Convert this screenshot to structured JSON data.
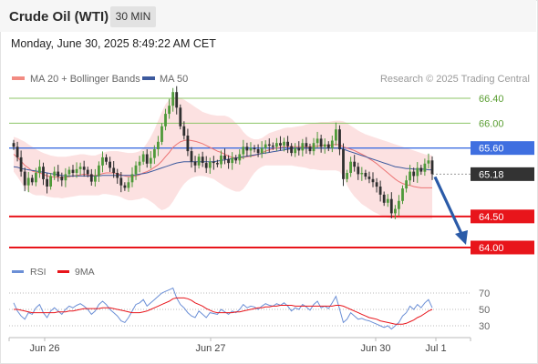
{
  "header": {
    "title": "Crude Oil (WTI)",
    "interval": "30 MIN",
    "datetime": "Monday, June 30, 2025 8:49:22 AM CET"
  },
  "copyright": "Research © 2025 Trading Central",
  "chart_data": {
    "type": "candlestick",
    "legend": [
      {
        "name": "MA 20 + Bollinger Bands",
        "color": "#f28b82"
      },
      {
        "name": "MA 50",
        "color": "#3d5a9e"
      }
    ],
    "ylim": [
      63.9,
      66.5
    ],
    "levels": [
      {
        "value": 66.4,
        "label": "66.40",
        "kind": "resistance",
        "color": "#8cc466"
      },
      {
        "value": 66.0,
        "label": "66.00",
        "kind": "resistance",
        "color": "#8cc466"
      },
      {
        "value": 65.6,
        "label": "65.60",
        "kind": "pivot",
        "color": "#3f6fe0"
      },
      {
        "value": 65.18,
        "label": "65.18",
        "kind": "last",
        "color": "#333333"
      },
      {
        "value": 64.5,
        "label": "64.50",
        "kind": "support",
        "color": "#e8151b"
      },
      {
        "value": 64.0,
        "label": "64.00",
        "kind": "support",
        "color": "#e8151b"
      }
    ],
    "x_ticks": [
      "Jun 26",
      "Jun 27",
      "Jun 30",
      "Jul 1"
    ],
    "close": [
      65.62,
      65.45,
      65.22,
      65.0,
      65.12,
      65.05,
      65.2,
      65.3,
      65.1,
      64.98,
      65.15,
      65.22,
      65.14,
      65.08,
      65.18,
      65.25,
      65.2,
      65.26,
      65.3,
      65.25,
      65.18,
      65.06,
      65.15,
      65.32,
      65.45,
      65.38,
      65.28,
      65.2,
      65.12,
      65.0,
      64.96,
      65.05,
      65.18,
      65.32,
      65.38,
      65.5,
      65.35,
      65.44,
      65.58,
      65.7,
      65.95,
      66.15,
      66.28,
      66.5,
      66.25,
      65.95,
      65.8,
      65.55,
      65.38,
      65.32,
      65.46,
      65.36,
      65.28,
      65.38,
      65.36,
      65.34,
      65.48,
      65.42,
      65.36,
      65.44,
      65.4,
      65.5,
      65.62,
      65.56,
      65.6,
      65.58,
      65.52,
      65.6,
      65.66,
      65.64,
      65.62,
      65.68,
      65.64,
      65.7,
      65.63,
      65.52,
      65.6,
      65.56,
      65.68,
      65.62,
      65.55,
      65.68,
      65.75,
      65.62,
      65.66,
      65.6,
      65.72,
      65.9,
      65.58,
      65.1,
      65.2,
      65.38,
      65.3,
      65.18,
      65.2,
      65.14,
      65.1,
      65.05,
      64.98,
      64.85,
      64.72,
      64.78,
      64.55,
      64.62,
      64.75,
      64.95,
      65.08,
      65.22,
      65.15,
      65.28,
      65.22,
      65.35,
      65.4,
      65.18
    ],
    "ma20": [
      65.5,
      65.45,
      65.39,
      65.32,
      65.28,
      65.23,
      65.21,
      65.2,
      65.18,
      65.15,
      65.14,
      65.13,
      65.13,
      65.12,
      65.13,
      65.14,
      65.15,
      65.16,
      65.17,
      65.18,
      65.17,
      65.16,
      65.16,
      65.17,
      65.19,
      65.2,
      65.2,
      65.2,
      65.19,
      65.17,
      65.15,
      65.14,
      65.14,
      65.15,
      65.17,
      65.2,
      65.22,
      65.25,
      65.29,
      65.33,
      65.39,
      65.46,
      65.53,
      65.61,
      65.66,
      65.7,
      65.72,
      65.73,
      65.72,
      65.71,
      65.69,
      65.67,
      65.64,
      65.61,
      65.58,
      65.55,
      65.53,
      65.5,
      65.47,
      65.45,
      65.44,
      65.44,
      65.45,
      65.46,
      65.47,
      65.48,
      65.5,
      65.52,
      65.55,
      65.57,
      65.59,
      65.6,
      65.61,
      65.62,
      65.62,
      65.62,
      65.62,
      65.62,
      65.62,
      65.62,
      65.62,
      65.63,
      65.63,
      65.64,
      65.64,
      65.64,
      65.65,
      65.66,
      65.65,
      65.62,
      65.6,
      65.58,
      65.56,
      65.53,
      65.5,
      65.47,
      65.43,
      65.39,
      65.35,
      65.3,
      65.25,
      65.2,
      65.15,
      65.1,
      65.06,
      65.03,
      65.01,
      65.0,
      64.98,
      64.97,
      64.96,
      64.96,
      64.96,
      64.96
    ],
    "bb_upper": [
      65.78,
      65.76,
      65.73,
      65.7,
      65.66,
      65.62,
      65.58,
      65.55,
      65.52,
      65.5,
      65.48,
      65.47,
      65.46,
      65.46,
      65.46,
      65.47,
      65.48,
      65.49,
      65.5,
      65.5,
      65.49,
      65.48,
      65.48,
      65.5,
      65.52,
      65.54,
      65.55,
      65.55,
      65.55,
      65.54,
      65.53,
      65.52,
      65.52,
      65.53,
      65.55,
      65.6,
      65.68,
      65.78,
      65.9,
      66.04,
      66.18,
      66.3,
      66.38,
      66.42,
      66.42,
      66.4,
      66.38,
      66.34,
      66.3,
      66.26,
      66.22,
      66.18,
      66.16,
      66.14,
      66.13,
      66.12,
      66.12,
      66.12,
      66.1,
      66.06,
      66.0,
      65.94,
      65.86,
      65.8,
      65.76,
      65.74,
      65.74,
      65.76,
      65.8,
      65.84,
      65.86,
      65.88,
      65.9,
      65.92,
      65.93,
      65.93,
      65.94,
      65.95,
      65.96,
      65.98,
      65.99,
      66.0,
      66.01,
      66.02,
      66.02,
      66.02,
      66.03,
      66.04,
      66.04,
      66.03,
      66.0,
      65.96,
      65.92,
      65.88,
      65.85,
      65.82,
      65.8,
      65.78,
      65.76,
      65.74,
      65.72,
      65.7,
      65.68,
      65.66,
      65.64,
      65.62,
      65.6,
      65.58,
      65.56,
      65.54,
      65.52,
      65.5,
      65.49,
      65.48
    ],
    "bb_lower": [
      65.22,
      65.14,
      65.05,
      64.95,
      64.9,
      64.86,
      64.84,
      64.84,
      64.84,
      64.82,
      64.81,
      64.8,
      64.8,
      64.79,
      64.8,
      64.81,
      64.82,
      64.83,
      64.84,
      64.84,
      64.84,
      64.84,
      64.84,
      64.84,
      64.86,
      64.86,
      64.85,
      64.84,
      64.83,
      64.81,
      64.78,
      64.76,
      64.76,
      64.77,
      64.78,
      64.8,
      64.78,
      64.74,
      64.7,
      64.64,
      64.6,
      64.62,
      64.66,
      64.74,
      64.84,
      64.94,
      65.02,
      65.08,
      65.12,
      65.14,
      65.15,
      65.15,
      65.14,
      65.12,
      65.1,
      65.06,
      65.02,
      64.98,
      64.95,
      64.92,
      64.9,
      64.9,
      64.94,
      65.02,
      65.12,
      65.2,
      65.26,
      65.3,
      65.32,
      65.32,
      65.32,
      65.32,
      65.32,
      65.32,
      65.32,
      65.32,
      65.31,
      65.3,
      65.29,
      65.28,
      65.26,
      65.26,
      65.25,
      65.24,
      65.24,
      65.24,
      65.24,
      65.24,
      65.22,
      65.14,
      65.0,
      64.9,
      64.82,
      64.76,
      64.7,
      64.66,
      64.62,
      64.58,
      64.55,
      64.52,
      64.5,
      64.48,
      64.47,
      64.46,
      64.46,
      64.46,
      64.46,
      64.46,
      64.46,
      64.46,
      64.46,
      64.46,
      64.46,
      64.46
    ],
    "ma50": [
      65.3,
      65.29,
      65.27,
      65.26,
      65.25,
      65.24,
      65.23,
      65.22,
      65.21,
      65.2,
      65.19,
      65.18,
      65.17,
      65.16,
      65.15,
      65.15,
      65.15,
      65.15,
      65.15,
      65.15,
      65.15,
      65.15,
      65.15,
      65.15,
      65.16,
      65.16,
      65.16,
      65.16,
      65.16,
      65.16,
      65.16,
      65.16,
      65.16,
      65.17,
      65.18,
      65.19,
      65.2,
      65.22,
      65.24,
      65.26,
      65.28,
      65.3,
      65.32,
      65.34,
      65.36,
      65.37,
      65.38,
      65.38,
      65.38,
      65.38,
      65.38,
      65.38,
      65.38,
      65.38,
      65.38,
      65.39,
      65.4,
      65.41,
      65.42,
      65.43,
      65.44,
      65.45,
      65.46,
      65.47,
      65.48,
      65.49,
      65.5,
      65.51,
      65.52,
      65.53,
      65.54,
      65.55,
      65.56,
      65.57,
      65.58,
      65.59,
      65.6,
      65.6,
      65.6,
      65.6,
      65.6,
      65.6,
      65.6,
      65.6,
      65.6,
      65.6,
      65.6,
      65.6,
      65.6,
      65.58,
      65.56,
      65.54,
      65.52,
      65.5,
      65.48,
      65.46,
      65.44,
      65.42,
      65.4,
      65.38,
      65.36,
      65.34,
      65.32,
      65.3,
      65.29,
      65.28,
      65.27,
      65.27,
      65.26,
      65.26,
      65.26,
      65.26,
      65.25,
      65.25
    ],
    "forecast": {
      "from": 65.18,
      "to": 64.0
    },
    "rsi_panel": {
      "legend": [
        {
          "name": "RSI",
          "color": "#6b8fd6"
        },
        {
          "name": "9MA",
          "color": "#e8151b"
        }
      ],
      "y_ticks": [
        70,
        50,
        30
      ],
      "ylim": [
        25,
        75
      ],
      "rsi": [
        58,
        48,
        42,
        38,
        46,
        44,
        52,
        56,
        46,
        40,
        48,
        52,
        48,
        44,
        50,
        54,
        52,
        55,
        57,
        54,
        50,
        44,
        48,
        56,
        60,
        56,
        50,
        46,
        42,
        36,
        34,
        40,
        48,
        56,
        58,
        62,
        54,
        58,
        62,
        66,
        70,
        72,
        74,
        76,
        64,
        56,
        52,
        46,
        42,
        40,
        48,
        44,
        40,
        46,
        45,
        44,
        50,
        47,
        44,
        48,
        46,
        50,
        56,
        52,
        54,
        53,
        50,
        54,
        57,
        55,
        54,
        57,
        55,
        58,
        54,
        48,
        52,
        50,
        56,
        53,
        49,
        56,
        60,
        52,
        54,
        51,
        58,
        66,
        50,
        34,
        38,
        46,
        42,
        38,
        39,
        37,
        36,
        34,
        32,
        30,
        28,
        30,
        26,
        30,
        34,
        42,
        46,
        54,
        50,
        56,
        52,
        58,
        62,
        52
      ],
      "ma9": [
        50,
        50,
        49,
        48,
        47,
        46,
        46,
        46,
        46,
        46,
        46,
        46,
        47,
        47,
        47,
        48,
        48,
        49,
        50,
        51,
        51,
        51,
        51,
        51,
        52,
        52,
        52,
        51,
        50,
        49,
        48,
        47,
        46,
        46,
        46,
        47,
        48,
        50,
        52,
        54,
        56,
        58,
        60,
        63,
        64,
        64,
        64,
        63,
        61,
        58,
        56,
        54,
        51,
        49,
        47,
        46,
        46,
        46,
        46,
        46,
        47,
        47,
        48,
        49,
        50,
        51,
        52,
        52,
        53,
        53,
        54,
        54,
        55,
        55,
        55,
        55,
        54,
        54,
        54,
        54,
        54,
        54,
        54,
        54,
        54,
        54,
        54,
        55,
        55,
        54,
        52,
        50,
        48,
        46,
        44,
        42,
        40,
        39,
        38,
        36,
        35,
        34,
        33,
        32,
        32,
        32,
        33,
        35,
        37,
        40,
        42,
        45,
        48,
        50
      ]
    }
  }
}
